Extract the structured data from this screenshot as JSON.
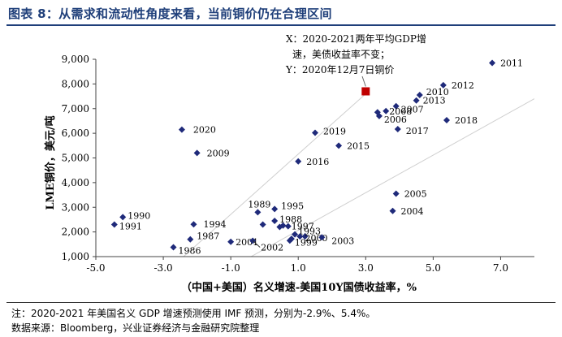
{
  "header": {
    "title": "图表 8：从需求和流动性角度来看，当前铜价仍在合理区间"
  },
  "chart_data": {
    "type": "scatter",
    "title": "",
    "xlabel": "（中国+美国）名义增速-美国10Y国债收益率，%",
    "ylabel": "LME铜价，美元/吨",
    "xlim": [
      -5.0,
      8.0
    ],
    "ylim": [
      1000,
      9000
    ],
    "x_ticks": [
      -5.0,
      -3.0,
      -1.0,
      1.0,
      3.0,
      5.0,
      7.0
    ],
    "x_tick_labels": [
      "-5.0",
      "-3.0",
      "-1.0",
      "1.0",
      "3.0",
      "5.0",
      "7.0"
    ],
    "y_ticks": [
      1000,
      2000,
      3000,
      4000,
      5000,
      6000,
      7000,
      8000,
      9000
    ],
    "y_tick_labels": [
      "1,000",
      "2,000",
      "3,000",
      "4,000",
      "5,000",
      "6,000",
      "7,000",
      "8,000",
      "9,000"
    ],
    "grid": false,
    "points": [
      {
        "label": "2011",
        "x": 6.75,
        "y": 8850
      },
      {
        "label": "2012",
        "x": 5.3,
        "y": 7950
      },
      {
        "label": "2010",
        "x": 4.6,
        "y": 7550
      },
      {
        "label": "2013",
        "x": 4.5,
        "y": 7330
      },
      {
        "label": "2007",
        "x": 3.9,
        "y": 7100
      },
      {
        "label": "2008",
        "x": 3.6,
        "y": 6900
      },
      {
        "label": "2006",
        "x": 3.4,
        "y": 6700
      },
      {
        "label": "",
        "x": 3.35,
        "y": 6850
      },
      {
        "label": "2018",
        "x": 5.4,
        "y": 6530
      },
      {
        "label": "2017",
        "x": 3.95,
        "y": 6170
      },
      {
        "label": "2020",
        "x": -2.45,
        "y": 6150
      },
      {
        "label": "2019",
        "x": 1.5,
        "y": 6020
      },
      {
        "label": "2015",
        "x": 2.2,
        "y": 5500
      },
      {
        "label": "2009",
        "x": -2.0,
        "y": 5200
      },
      {
        "label": "2016",
        "x": 1.0,
        "y": 4860
      },
      {
        "label": "2005",
        "x": 3.9,
        "y": 3550
      },
      {
        "label": "2004",
        "x": 3.8,
        "y": 2850
      },
      {
        "label": "1989",
        "x": -0.2,
        "y": 2800
      },
      {
        "label": "1995",
        "x": 0.3,
        "y": 2930
      },
      {
        "label": "1990",
        "x": -4.2,
        "y": 2600
      },
      {
        "label": "1991",
        "x": -4.45,
        "y": 2300
      },
      {
        "label": "1994",
        "x": -2.1,
        "y": 2310
      },
      {
        "label": "1988",
        "x": 0.3,
        "y": 2450
      },
      {
        "label": "",
        "x": -0.05,
        "y": 2300
      },
      {
        "label": "",
        "x": 0.45,
        "y": 2200
      },
      {
        "label": "1997",
        "x": 0.7,
        "y": 2230
      },
      {
        "label": "",
        "x": 0.55,
        "y": 2260
      },
      {
        "label": "1993",
        "x": 0.9,
        "y": 1900
      },
      {
        "label": "",
        "x": 1.05,
        "y": 1820
      },
      {
        "label": "",
        "x": 0.8,
        "y": 1720
      },
      {
        "label": "1999",
        "x": 0.75,
        "y": 1650
      },
      {
        "label": "2000",
        "x": 1.2,
        "y": 1820
      },
      {
        "label": "2003",
        "x": 1.7,
        "y": 1780
      },
      {
        "label": "1987",
        "x": -2.2,
        "y": 1700
      },
      {
        "label": "1986",
        "x": -2.7,
        "y": 1380
      },
      {
        "label": "2001",
        "x": -1.0,
        "y": 1600
      },
      {
        "label": "2002",
        "x": -0.35,
        "y": 1640
      }
    ],
    "highlight_point": {
      "x": 3.0,
      "y": 7700,
      "color": "#c00000"
    },
    "annotation": [
      "X：2020-2021两年平均GDP增",
      "速，美债收益率不变；",
      "Y：2020年12月7日铜价"
    ],
    "reference_lines": [
      {
        "x": [
          -2.4,
          3.0
        ],
        "y": [
          1000,
          7600
        ]
      },
      {
        "x": [
          -0.4,
          8.0
        ],
        "y": [
          1000,
          7400
        ]
      }
    ],
    "colors": {
      "marker": "#1f2a7a",
      "highlight": "#c00000",
      "title": "#1f3f7a",
      "guide": "#cfcfcf"
    }
  },
  "footer": {
    "note": "注：2020-2021 年美国名义 GDP 增速预测使用 IMF 预测，分别为-2.9%、5.4%。",
    "source": "数据来源：Bloomberg，兴业证券经济与金融研究院整理"
  }
}
